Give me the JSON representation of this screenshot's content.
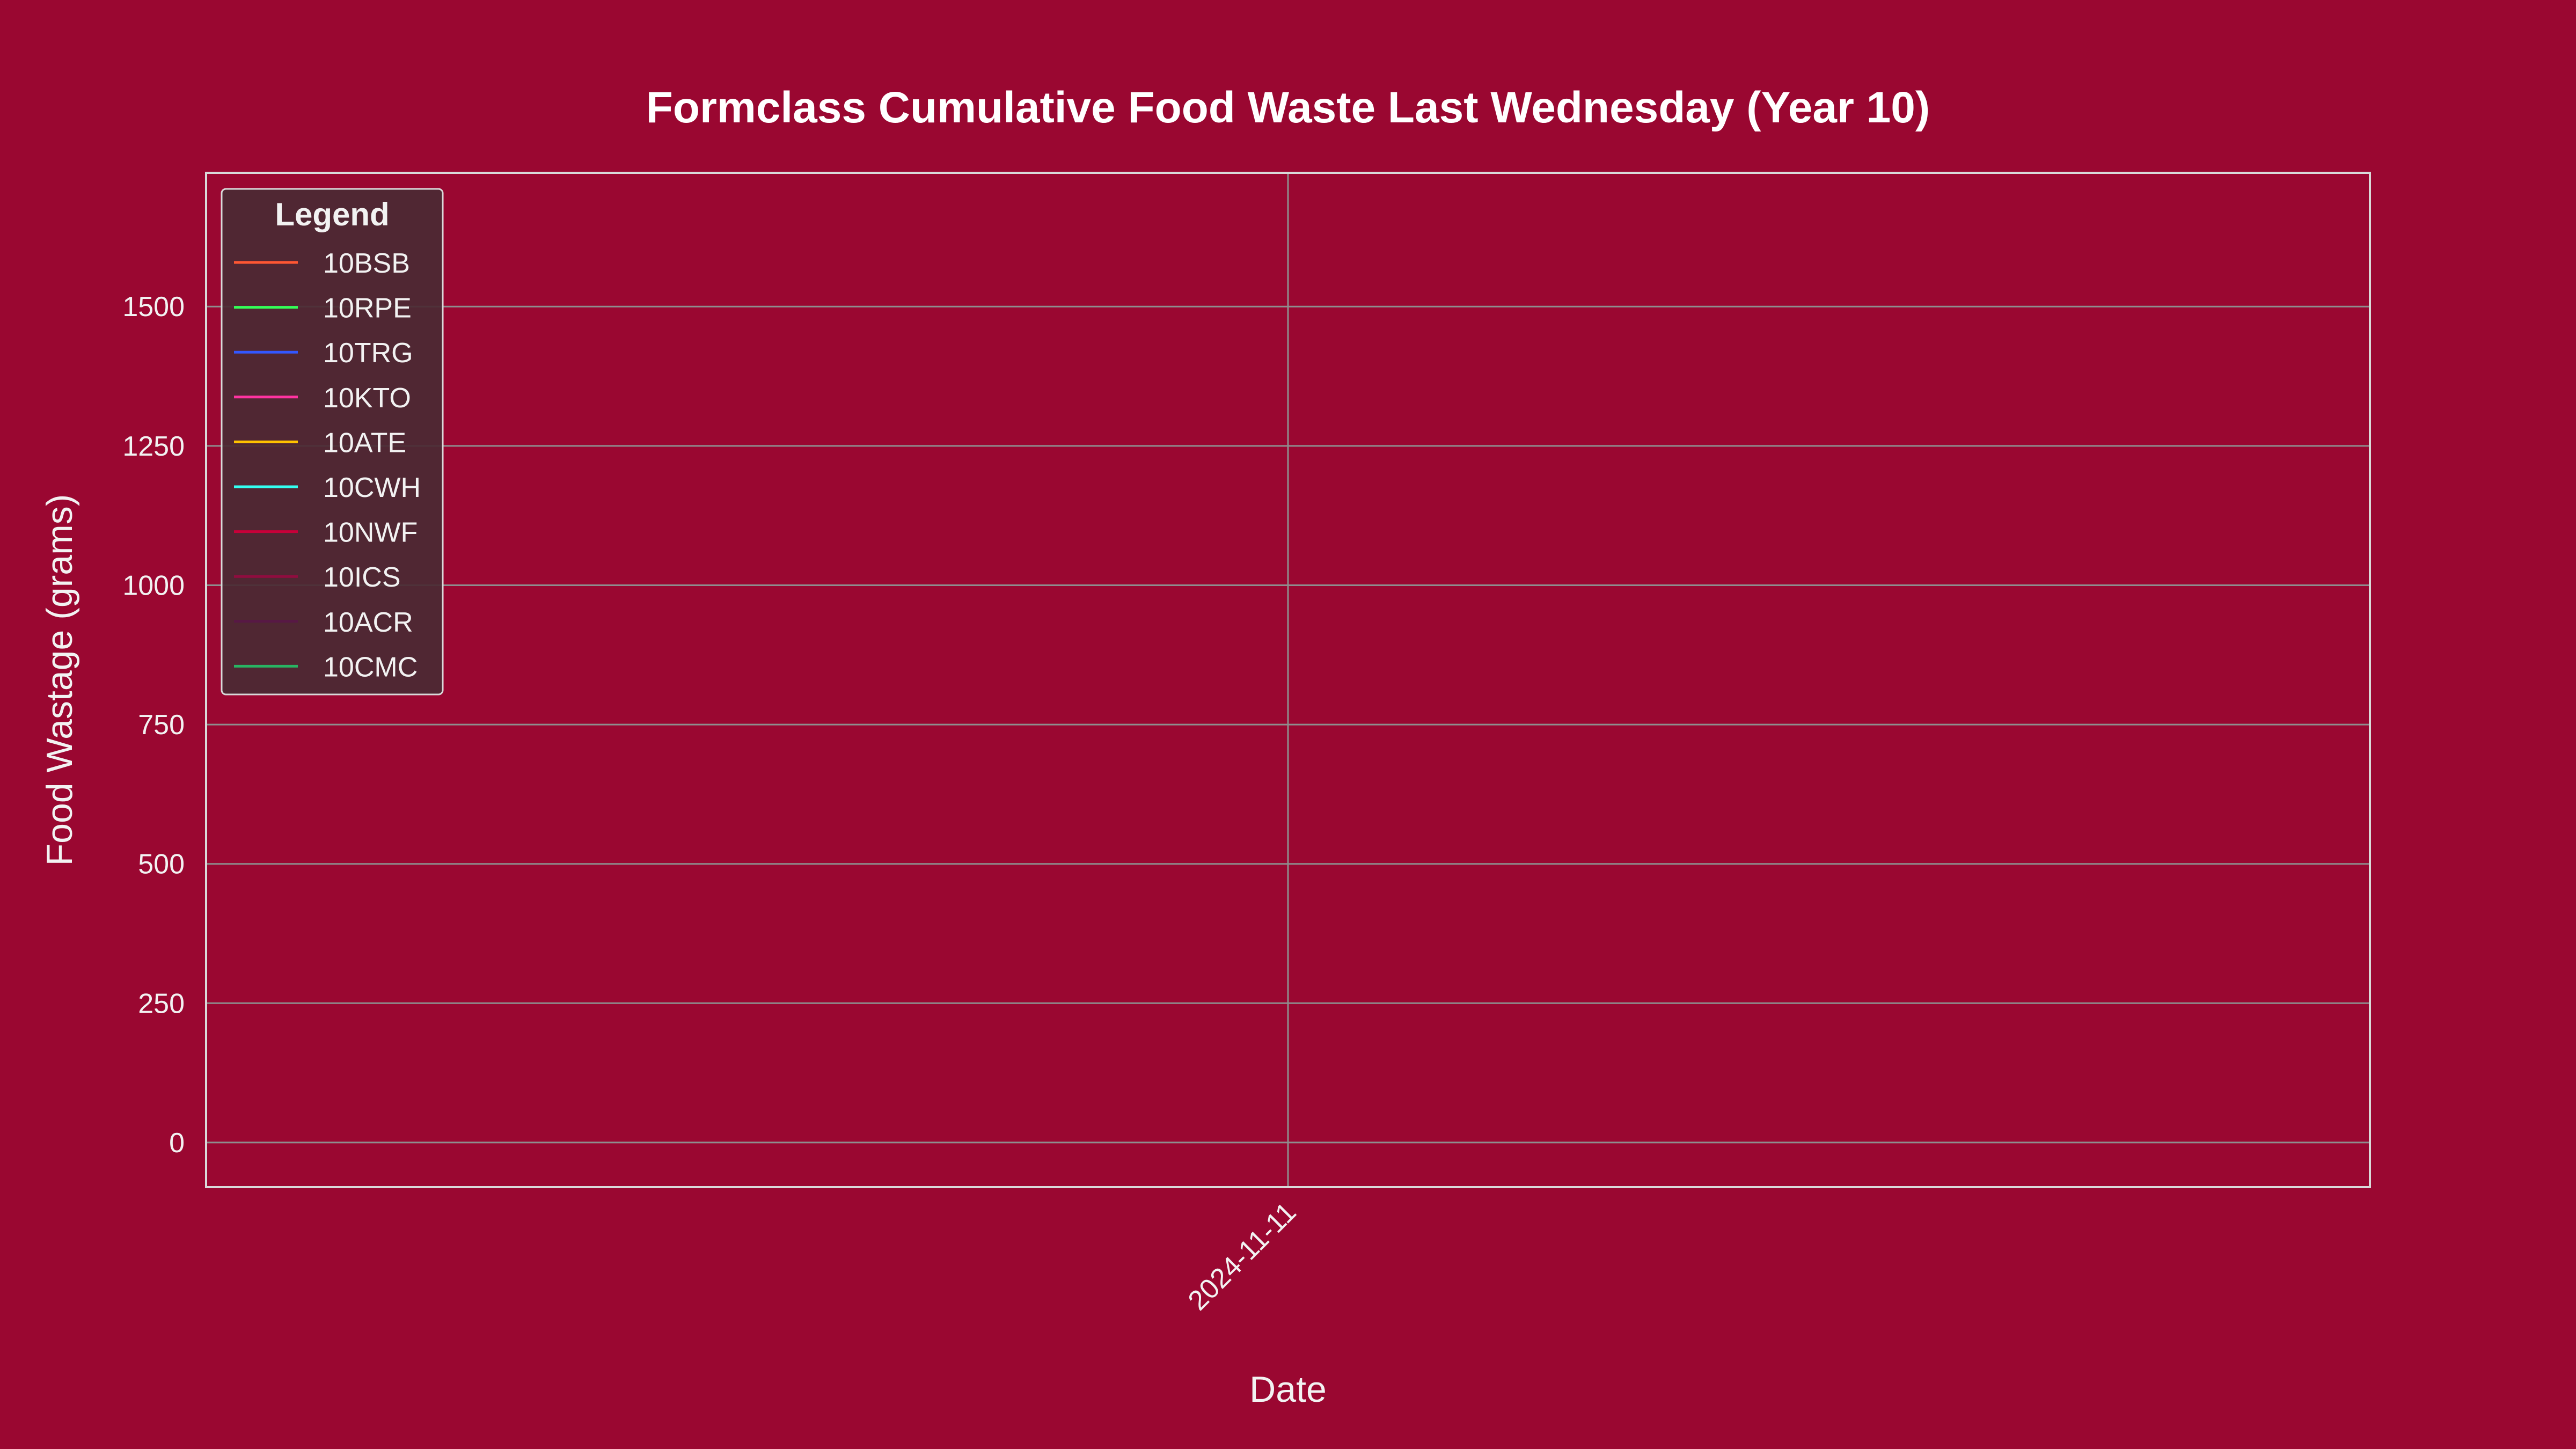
{
  "chart_data": {
    "type": "line",
    "title": "Formclass Cumulative Food Waste Last Wednesday (Year 10)",
    "xlabel": "Date",
    "ylabel": "Food Wastage (grams)",
    "x_categories": [
      "2024-11-11"
    ],
    "yticks": [
      0,
      250,
      500,
      750,
      1000,
      1250,
      1500
    ],
    "ylim": [
      -80,
      1740
    ],
    "grid": true,
    "legend": {
      "title": "Legend",
      "placement": "top-left"
    },
    "series": [
      {
        "name": "10BSB",
        "color": "#FF5733",
        "values": []
      },
      {
        "name": "10RPE",
        "color": "#33FF57",
        "values": []
      },
      {
        "name": "10TRG",
        "color": "#3357FF",
        "values": []
      },
      {
        "name": "10KTO",
        "color": "#FF33A1",
        "values": []
      },
      {
        "name": "10ATE",
        "color": "#FFC300",
        "values": []
      },
      {
        "name": "10CWH",
        "color": "#33FFF0",
        "values": []
      },
      {
        "name": "10NWF",
        "color": "#C70039",
        "values": []
      },
      {
        "name": "10ICS",
        "color": "#900C3F",
        "values": []
      },
      {
        "name": "10ACR",
        "color": "#581845",
        "values": []
      },
      {
        "name": "10CMC",
        "color": "#28B463",
        "values": []
      }
    ],
    "colors": {
      "background": "#9A0731",
      "axes_face": "#9A0731",
      "grid": "#8E8E8E",
      "spine": "#D9D9D9",
      "text": "#F2F2F2",
      "legend_face": "#4A2A33"
    }
  }
}
